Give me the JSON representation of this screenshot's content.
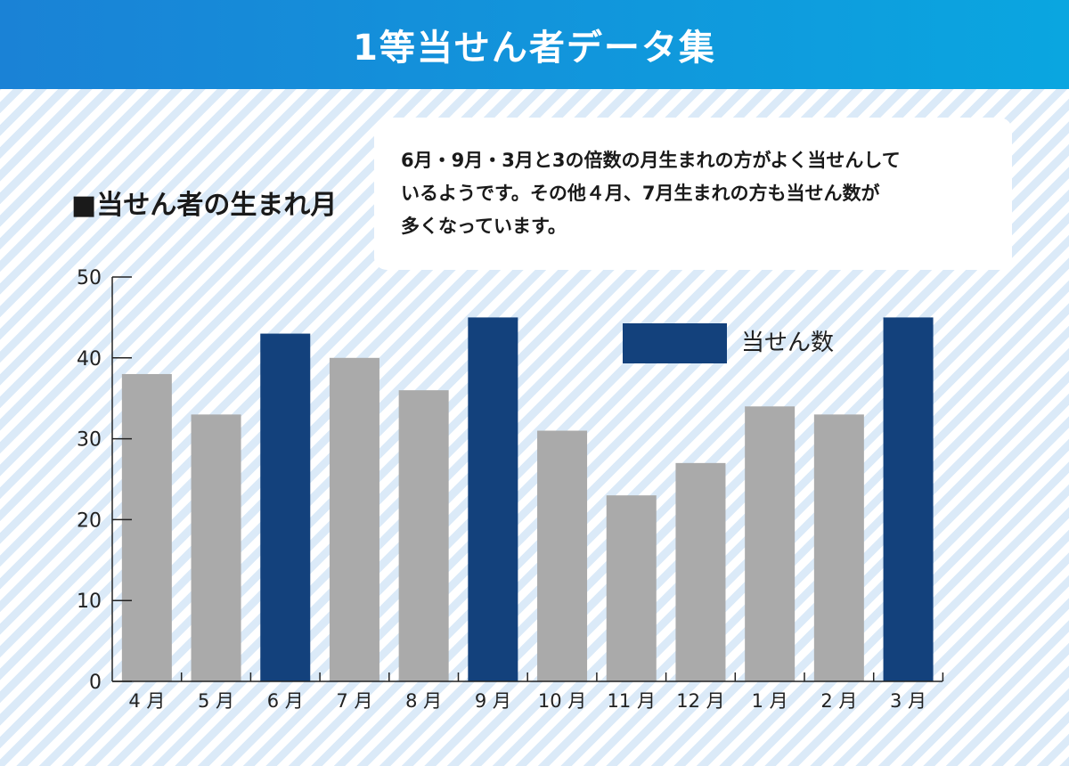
{
  "header": {
    "title": "1等当せん者データ集"
  },
  "section": {
    "title": "■当せん者の生まれ月"
  },
  "note": {
    "lines": [
      "6月・9月・3月と3の倍数の月生まれの方がよく当せんして",
      "いるようです。その他４月、7月生まれの方も当せん数が",
      "多くなっています。"
    ]
  },
  "colors": {
    "highlight": "#13417c",
    "normal": "#aaaaaa",
    "axis": "#222222"
  },
  "chart_data": {
    "type": "bar",
    "title": "",
    "xlabel": "",
    "ylabel": "",
    "ylim": [
      0,
      50
    ],
    "yticks": [
      "0",
      "10",
      "20",
      "30",
      "40",
      "50"
    ],
    "categories": [
      "4 月",
      "5 月",
      "6 月",
      "7 月",
      "8 月",
      "9 月",
      "10 月",
      "11 月",
      "12 月",
      "1 月",
      "2 月",
      "3 月"
    ],
    "values": [
      38,
      33,
      43,
      40,
      36,
      45,
      31,
      23,
      27,
      34,
      33,
      45
    ],
    "highlighted": [
      false,
      false,
      true,
      false,
      false,
      true,
      false,
      false,
      false,
      false,
      false,
      true
    ],
    "legend": {
      "label": "当せん数",
      "position": "top-right"
    },
    "grid": false
  }
}
